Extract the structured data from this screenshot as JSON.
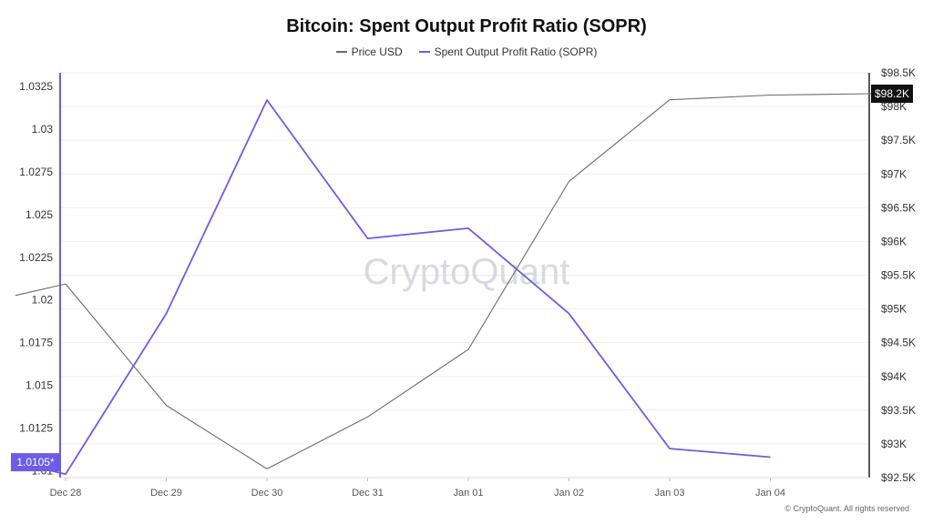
{
  "chart_data": {
    "type": "line",
    "title": "Bitcoin: Spent Output Profit Ratio (SOPR)",
    "watermark": "CryptoQuant",
    "copyright": "© CryptoQuant. All rights reserved",
    "x": [
      "Dec 28",
      "Dec 29",
      "Dec 30",
      "Dec 31",
      "Jan 01",
      "Jan 02",
      "Jan 03",
      "Jan 04"
    ],
    "series": [
      {
        "name": "Price USD",
        "axis": "right",
        "color": "#6b6b6b",
        "points": [
          [
            "2024-12-27 12:00",
            95200
          ],
          [
            "2024-12-28 00:00",
            95370
          ],
          [
            "2024-12-29 00:00",
            93570
          ],
          [
            "2024-12-30 00:00",
            92630
          ],
          [
            "2024-12-31 00:00",
            93400
          ],
          [
            "2025-01-01 00:00",
            94400
          ],
          [
            "2025-01-02 00:00",
            96890
          ],
          [
            "2025-01-03 00:00",
            98100
          ],
          [
            "2025-01-04 00:00",
            98170
          ],
          [
            "2025-01-05 00:00",
            98190
          ]
        ]
      },
      {
        "name": "Spent Output Profit Ratio (SOPR)",
        "axis": "left",
        "color": "#6c5ce7",
        "points": [
          [
            "2024-12-27 12:00",
            1.0105
          ],
          [
            "2024-12-28 00:00",
            1.0098
          ],
          [
            "2024-12-29 00:00",
            1.0192
          ],
          [
            "2024-12-30 00:00",
            1.0317
          ],
          [
            "2024-12-31 00:00",
            1.0236
          ],
          [
            "2025-01-01 00:00",
            1.0242
          ],
          [
            "2025-01-02 00:00",
            1.0192
          ],
          [
            "2025-01-03 00:00",
            1.0113
          ],
          [
            "2025-01-04 00:00",
            1.0108
          ]
        ]
      }
    ],
    "y_left": {
      "ylim": [
        1.0096,
        1.0333
      ],
      "ticks": [
        "1.0325",
        "1.03",
        "1.0275",
        "1.025",
        "1.0225",
        "1.02",
        "1.0175",
        "1.015",
        "1.0125",
        "1.01"
      ],
      "last_value_label": "1.0105*"
    },
    "y_right": {
      "ylim": [
        92500,
        98500
      ],
      "ticks": [
        "$98.5K",
        "$98K",
        "$97.5K",
        "$97K",
        "$96.5K",
        "$96K",
        "$95.5K",
        "$95K",
        "$94.5K",
        "$94K",
        "$93.5K",
        "$93K",
        "$92.5K"
      ],
      "last_value_label": "$98.2K"
    },
    "grid": true,
    "legend_position": "top-center"
  }
}
